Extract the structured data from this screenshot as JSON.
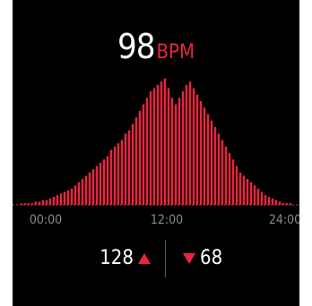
{
  "heart_rate": {
    "value": "98",
    "unit": "BPM"
  },
  "stats": {
    "max": "128",
    "min": "68"
  },
  "colors": {
    "accent": "#e8263f",
    "axis": "#5a5a5a",
    "tick_text": "#8a8a8a"
  },
  "icons": {
    "max_indicator": "triangle-up-icon",
    "min_indicator": "triangle-down-icon"
  },
  "chart_data": {
    "type": "bar",
    "x_ticks": [
      "00:00",
      "12:00",
      "24:00"
    ],
    "values": [
      0.5,
      0.5,
      0.5,
      0.5,
      1,
      1,
      1.5,
      1.5,
      2,
      2.5,
      3,
      3.5,
      4,
      4.5,
      5,
      6,
      7,
      8,
      9,
      10,
      11,
      12,
      13,
      14,
      15,
      17,
      18,
      19,
      20,
      22,
      23,
      25,
      27,
      29,
      31,
      33,
      35,
      36,
      37,
      38,
      39,
      36,
      33,
      31,
      33,
      35,
      37,
      38,
      36,
      34,
      32,
      30,
      28,
      26,
      24,
      22,
      20,
      18,
      16,
      14,
      12,
      10,
      9,
      8,
      7,
      6,
      5,
      4,
      3,
      2.5,
      2,
      1.5,
      1,
      0.5,
      0.5,
      0.5
    ],
    "ylim": [
      0,
      40
    ],
    "grid": false
  }
}
